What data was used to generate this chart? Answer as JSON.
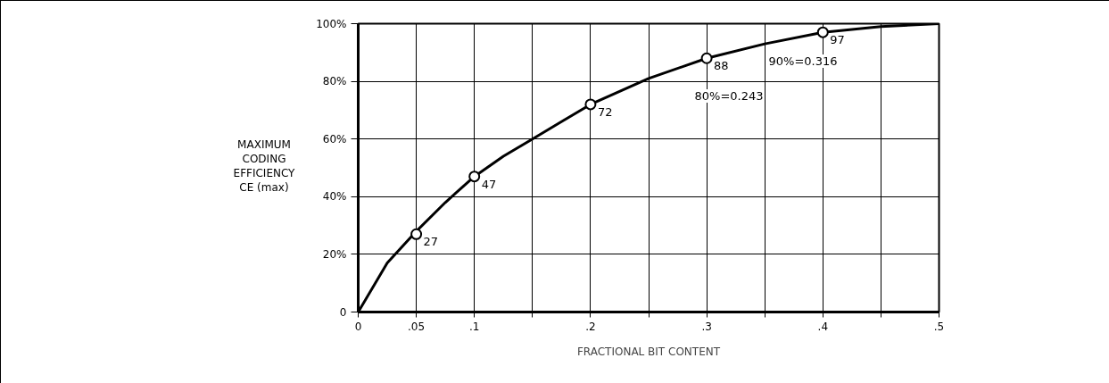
{
  "chart_data": {
    "type": "line",
    "xlabel": "FRACTIONAL BIT CONTENT",
    "ylabel": "MAXIMUM\nCODING\nEFFICIENCY\nCE (max)",
    "xlim": [
      0,
      0.5
    ],
    "ylim": [
      0,
      100
    ],
    "xticks": [
      0,
      {
        "value": 0.05,
        "label": ".05"
      },
      {
        "value": 0.1,
        "label": ".1"
      },
      {
        "value": 0.15,
        "label": null
      },
      {
        "value": 0.2,
        "label": ".2"
      },
      {
        "value": 0.25,
        "label": null
      },
      {
        "value": 0.3,
        "label": ".3"
      },
      {
        "value": 0.35,
        "label": null
      },
      {
        "value": 0.4,
        "label": ".4"
      },
      {
        "value": 0.45,
        "label": null
      },
      {
        "value": 0.5,
        "label": ".5"
      }
    ],
    "yticks": [
      0,
      {
        "value": 20,
        "label": "20%"
      },
      {
        "value": 40,
        "label": "40%"
      },
      {
        "value": 60,
        "label": "60%"
      },
      {
        "value": 80,
        "label": "80%"
      },
      {
        "value": 100,
        "label": "100%"
      }
    ],
    "grid": true,
    "series": [
      {
        "color": "#000000",
        "marker": "none",
        "line_style": "solid",
        "x": [
          0,
          0.025,
          0.05,
          0.075,
          0.1,
          0.125,
          0.15,
          0.175,
          0.2,
          0.25,
          0.3,
          0.35,
          0.4,
          0.45,
          0.5
        ],
        "values": [
          0,
          17,
          28,
          38,
          47,
          54,
          60,
          66,
          72,
          81,
          88,
          93,
          97,
          99,
          100
        ]
      },
      {
        "type": "scatter",
        "color": "#000000",
        "marker": "circle",
        "x": [
          0.05,
          0.1,
          0.2,
          0.3,
          0.4
        ],
        "values": [
          27,
          47,
          72,
          88,
          97
        ],
        "value_labels": [
          "27",
          "47",
          "72",
          "88",
          "97"
        ]
      }
    ],
    "annotations": [
      "80%=0.243",
      "90%=0.316"
    ]
  }
}
